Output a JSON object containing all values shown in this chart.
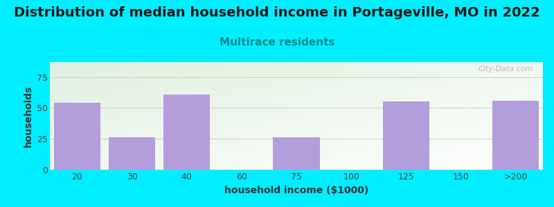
{
  "title": "Distribution of median household income in Portageville, MO in 2022",
  "subtitle": "Multirace residents",
  "xlabel": "household income ($1000)",
  "ylabel": "households",
  "categories": [
    "20",
    "30",
    "40",
    "60",
    "75",
    "100",
    "125",
    "150",
    ">200"
  ],
  "values": [
    54,
    26,
    61,
    0,
    26,
    0,
    55,
    0,
    56
  ],
  "bar_color": "#b39ddb",
  "background_outer": "#00eeff",
  "background_inner_topleft": "#dff0df",
  "background_inner_bottomright": "#f8f8ff",
  "title_fontsize": 14,
  "subtitle_fontsize": 11,
  "subtitle_color": "#008b8b",
  "xlabel_fontsize": 10,
  "ylabel_fontsize": 10,
  "tick_fontsize": 9,
  "ylim": [
    0,
    87
  ],
  "yticks": [
    0,
    25,
    50,
    75
  ],
  "watermark": "City-Data.com"
}
